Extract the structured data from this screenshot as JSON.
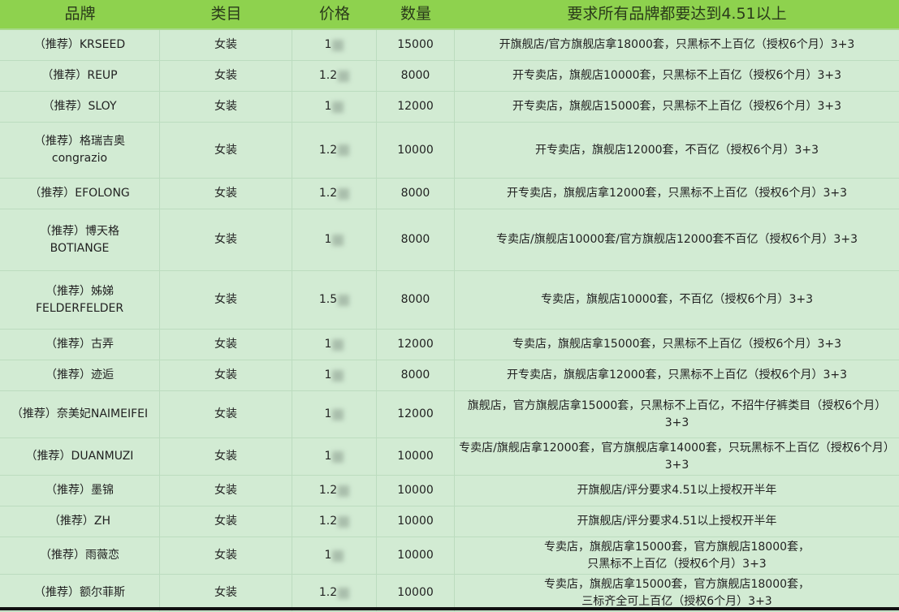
{
  "header": {
    "brand": "品牌",
    "category": "类目",
    "price": "价格",
    "quantity": "数量",
    "requirement": "要求所有品牌都要达到4.51以上"
  },
  "rows": [
    {
      "brand": "（推荐）KRSEED",
      "category": "女装",
      "price": "1",
      "quantity": "15000",
      "requirement": "开旗舰店/官方旗舰店拿18000套，只黑标不上百亿（授权6个月）3+3"
    },
    {
      "brand": "（推荐）REUP",
      "category": "女装",
      "price": "1.2",
      "quantity": "8000",
      "requirement": "开专卖店，旗舰店10000套，只黑标不上百亿（授权6个月）3+3"
    },
    {
      "brand": "（推荐）SLOY",
      "category": "女装",
      "price": "1",
      "quantity": "12000",
      "requirement": "开专卖店，旗舰店15000套，只黑标不上百亿（授权6个月）3+3"
    },
    {
      "brand": "（推荐）格瑞吉奥\ncongrazio",
      "category": "女装",
      "price": "1.2",
      "quantity": "10000",
      "requirement": "开专卖店，旗舰店12000套，不百亿（授权6个月）3+3"
    },
    {
      "brand": "（推荐）EFOLONG",
      "category": "女装",
      "price": "1.2",
      "quantity": "8000",
      "requirement": "开专卖店，旗舰店拿12000套，只黑标不上百亿（授权6个月）3+3"
    },
    {
      "brand": "（推荐）博天格\nBOTIANGE",
      "category": "女装",
      "price": "1",
      "quantity": "8000",
      "requirement": "专卖店/旗舰店10000套/官方旗舰店12000套不百亿（授权6个月）3+3"
    },
    {
      "brand": "（推荐）姊娣\nFELDERFELDER",
      "category": "女装",
      "price": "1.5",
      "quantity": "8000",
      "requirement": "专卖店，旗舰店10000套，不百亿（授权6个月）3+3"
    },
    {
      "brand": "（推荐）古弄",
      "category": "女装",
      "price": "1",
      "quantity": "12000",
      "requirement": "专卖店，旗舰店拿15000套，只黑标不上百亿（授权6个月）3+3"
    },
    {
      "brand": "（推荐）迹逅",
      "category": "女装",
      "price": "1",
      "quantity": "8000",
      "requirement": "开专卖店，旗舰店拿12000套，只黑标不上百亿（授权6个月）3+3"
    },
    {
      "brand": "（推荐）奈美妃NAIMEIFEI",
      "category": "女装",
      "price": "1",
      "quantity": "12000",
      "requirement": "旗舰店，官方旗舰店拿15000套，只黑标不上百亿，不招牛仔裤类目（授权6个月）3+3"
    },
    {
      "brand": "（推荐）DUANMUZI",
      "category": "女装",
      "price": "1",
      "quantity": "10000",
      "requirement": "专卖店/旗舰店拿12000套，官方旗舰店拿14000套，只玩黑标不上百亿（授权6个月）3+3"
    },
    {
      "brand": "（推荐）墨锦",
      "category": "女装",
      "price": "1.2",
      "quantity": "10000",
      "requirement": "开旗舰店/评分要求4.51以上授权开半年"
    },
    {
      "brand": "（推荐）ZH",
      "category": "女装",
      "price": "1.2",
      "quantity": "10000",
      "requirement": "开旗舰店/评分要求4.51以上授权开半年"
    },
    {
      "brand": "（推荐）雨薇恋",
      "category": "女装",
      "price": "1",
      "quantity": "10000",
      "requirement": "专卖店，旗舰店拿15000套，官方旗舰店18000套，\n只黑标不上百亿（授权6个月）3+3"
    },
    {
      "brand": "（推荐）额尔菲斯",
      "category": "女装",
      "price": "1.2",
      "quantity": "10000",
      "requirement": "专卖店，旗舰店拿15000套，官方旗舰店18000套，\n三标齐全可上百亿（授权6个月）3+3"
    }
  ]
}
